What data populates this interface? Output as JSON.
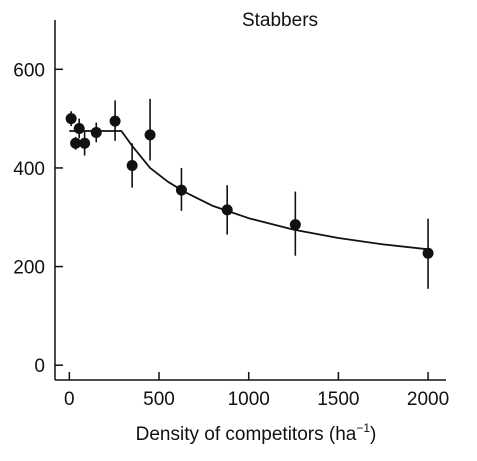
{
  "chart_data": {
    "type": "scatter",
    "title": "Stabbers",
    "xlabel": "Density of competitors (ha",
    "xlabel_superscript": "−1",
    "xlabel_suffix": ")",
    "ylabel": "",
    "xlim": [
      -80,
      2100
    ],
    "ylim": [
      -30,
      700
    ],
    "x_ticks": [
      {
        "value": 0,
        "label": "0"
      },
      {
        "value": 500,
        "label": "500"
      },
      {
        "value": 1000,
        "label": "1000"
      },
      {
        "value": 1500,
        "label": "1500"
      },
      {
        "value": 2000,
        "label": "2000"
      }
    ],
    "y_ticks": [
      {
        "value": 0,
        "label": "0"
      },
      {
        "value": 200,
        "label": "200"
      },
      {
        "value": 400,
        "label": "400"
      },
      {
        "value": 600,
        "label": "600"
      }
    ],
    "grid": false,
    "legend": "none",
    "points": [
      {
        "x": 10,
        "y": 500,
        "err_low": 485,
        "err_high": 515
      },
      {
        "x": 35,
        "y": 450,
        "err_low": 437,
        "err_high": 463
      },
      {
        "x": 55,
        "y": 480,
        "err_low": 460,
        "err_high": 500
      },
      {
        "x": 85,
        "y": 450,
        "err_low": 425,
        "err_high": 475
      },
      {
        "x": 150,
        "y": 472,
        "err_low": 452,
        "err_high": 492
      },
      {
        "x": 255,
        "y": 495,
        "err_low": 455,
        "err_high": 537
      },
      {
        "x": 350,
        "y": 405,
        "err_low": 360,
        "err_high": 450
      },
      {
        "x": 450,
        "y": 467,
        "err_low": 415,
        "err_high": 540
      },
      {
        "x": 625,
        "y": 355,
        "err_low": 313,
        "err_high": 400
      },
      {
        "x": 880,
        "y": 315,
        "err_low": 265,
        "err_high": 365
      },
      {
        "x": 1260,
        "y": 285,
        "err_low": 222,
        "err_high": 352
      },
      {
        "x": 2000,
        "y": 227,
        "err_low": 155,
        "err_high": 297
      }
    ],
    "fit_curve": {
      "x": [
        0,
        100,
        200,
        290,
        350,
        450,
        550,
        650,
        800,
        1000,
        1250,
        1500,
        1750,
        2000
      ],
      "y": [
        475,
        475,
        475,
        475,
        445,
        400,
        372,
        350,
        323,
        298,
        275,
        258,
        245,
        235
      ]
    },
    "colors": {
      "marker": "#111111",
      "line": "#111111",
      "axis": "#111111"
    }
  }
}
